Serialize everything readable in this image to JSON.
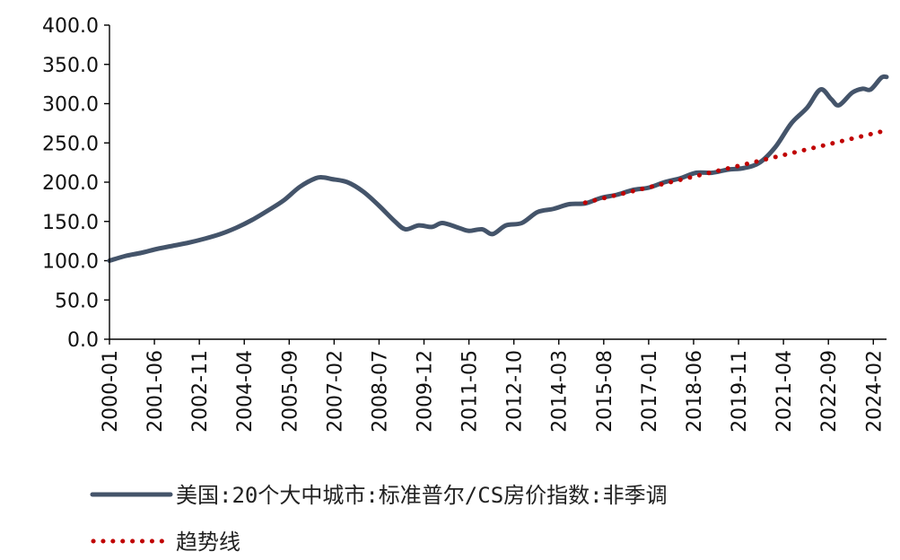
{
  "chart_data": {
    "type": "line",
    "ylim": [
      0,
      400
    ],
    "yticks": [
      "0.0",
      "50.0",
      "100.0",
      "150.0",
      "200.0",
      "250.0",
      "300.0",
      "350.0",
      "400.0"
    ],
    "xtick_labels": [
      "2000-01",
      "2001-06",
      "2002-11",
      "2004-04",
      "2005-09",
      "2007-02",
      "2008-07",
      "2009-12",
      "2011-05",
      "2012-10",
      "2014-03",
      "2015-08",
      "2017-01",
      "2018-06",
      "2019-11",
      "2021-04",
      "2022-09",
      "2024-02"
    ],
    "x_start": "2000-01",
    "x_end": "2024-07",
    "legend_position": "bottom",
    "series": [
      {
        "name": "美国:20个大中城市:标准普尔/CS房价指数:非季调",
        "color": "#44546a",
        "style": "solid",
        "points": [
          [
            "2000-01",
            100
          ],
          [
            "2000-07",
            106
          ],
          [
            "2001-01",
            110
          ],
          [
            "2001-07",
            115
          ],
          [
            "2002-01",
            119
          ],
          [
            "2002-07",
            123
          ],
          [
            "2003-01",
            128
          ],
          [
            "2003-07",
            134
          ],
          [
            "2004-01",
            142
          ],
          [
            "2004-07",
            152
          ],
          [
            "2005-01",
            164
          ],
          [
            "2005-07",
            177
          ],
          [
            "2006-01",
            194
          ],
          [
            "2006-07",
            205
          ],
          [
            "2006-10",
            206
          ],
          [
            "2007-01",
            204
          ],
          [
            "2007-07",
            200
          ],
          [
            "2008-01",
            188
          ],
          [
            "2008-07",
            170
          ],
          [
            "2009-01",
            150
          ],
          [
            "2009-05",
            140
          ],
          [
            "2009-10",
            145
          ],
          [
            "2010-03",
            143
          ],
          [
            "2010-07",
            148
          ],
          [
            "2011-01",
            142
          ],
          [
            "2011-05",
            138
          ],
          [
            "2011-10",
            140
          ],
          [
            "2012-02",
            134
          ],
          [
            "2012-07",
            145
          ],
          [
            "2013-01",
            148
          ],
          [
            "2013-07",
            162
          ],
          [
            "2014-01",
            166
          ],
          [
            "2014-07",
            172
          ],
          [
            "2015-01",
            173
          ],
          [
            "2015-07",
            180
          ],
          [
            "2016-01",
            184
          ],
          [
            "2016-07",
            190
          ],
          [
            "2017-01",
            193
          ],
          [
            "2017-07",
            200
          ],
          [
            "2018-01",
            205
          ],
          [
            "2018-07",
            212
          ],
          [
            "2019-01",
            212
          ],
          [
            "2019-07",
            216
          ],
          [
            "2020-01",
            218
          ],
          [
            "2020-07",
            225
          ],
          [
            "2021-01",
            245
          ],
          [
            "2021-07",
            275
          ],
          [
            "2022-01",
            295
          ],
          [
            "2022-06",
            318
          ],
          [
            "2022-10",
            306
          ],
          [
            "2023-01",
            298
          ],
          [
            "2023-06",
            314
          ],
          [
            "2023-10",
            319
          ],
          [
            "2024-01",
            318
          ],
          [
            "2024-05",
            333
          ],
          [
            "2024-07",
            334
          ]
        ]
      },
      {
        "name": "趋势线",
        "color": "#c00000",
        "style": "dotted",
        "points": [
          [
            "2015-01",
            174
          ],
          [
            "2024-07",
            266
          ]
        ]
      }
    ]
  }
}
